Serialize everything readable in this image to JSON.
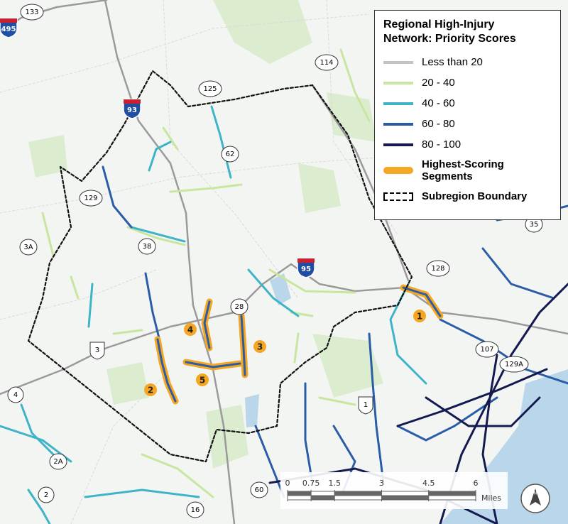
{
  "legend": {
    "title": "Regional High-Injury Network: Priority Scores",
    "items": [
      {
        "label": "Less than 20",
        "color": "#c4c4c4"
      },
      {
        "label": "20 - 40",
        "color": "#c8e6a0"
      },
      {
        "label": "40 - 60",
        "color": "#3fb4c8"
      },
      {
        "label": "60 - 80",
        "color": "#2b5ca8"
      },
      {
        "label": "80 - 100",
        "color": "#141a4f"
      }
    ],
    "highest": {
      "label": "Highest-Scoring Segments",
      "color": "#f5a623"
    },
    "boundary": "Subregion Boundary"
  },
  "route_shields": [
    {
      "label": "133",
      "style": "state"
    },
    {
      "label": "495",
      "style": "interstate"
    },
    {
      "label": "93",
      "style": "interstate"
    },
    {
      "label": "125",
      "style": "state"
    },
    {
      "label": "114",
      "style": "state"
    },
    {
      "label": "62",
      "style": "state"
    },
    {
      "label": "129",
      "style": "state"
    },
    {
      "label": "3A",
      "style": "state"
    },
    {
      "label": "38",
      "style": "state"
    },
    {
      "label": "95",
      "style": "interstate"
    },
    {
      "label": "128",
      "style": "state"
    },
    {
      "label": "35",
      "style": "state"
    },
    {
      "label": "28",
      "style": "state"
    },
    {
      "label": "3",
      "style": "us"
    },
    {
      "label": "107",
      "style": "state"
    },
    {
      "label": "129A",
      "style": "state"
    },
    {
      "label": "4",
      "style": "state"
    },
    {
      "label": "1",
      "style": "us"
    },
    {
      "label": "2A",
      "style": "state"
    },
    {
      "label": "2",
      "style": "state"
    },
    {
      "label": "60",
      "style": "state"
    },
    {
      "label": "16",
      "style": "state"
    }
  ],
  "segment_labels": [
    "1",
    "2",
    "3",
    "4",
    "5"
  ],
  "scale_bar": {
    "ticks": [
      0,
      0.75,
      1.5,
      3,
      4.5,
      6
    ],
    "unit": "Miles"
  },
  "north_arrow": "N"
}
